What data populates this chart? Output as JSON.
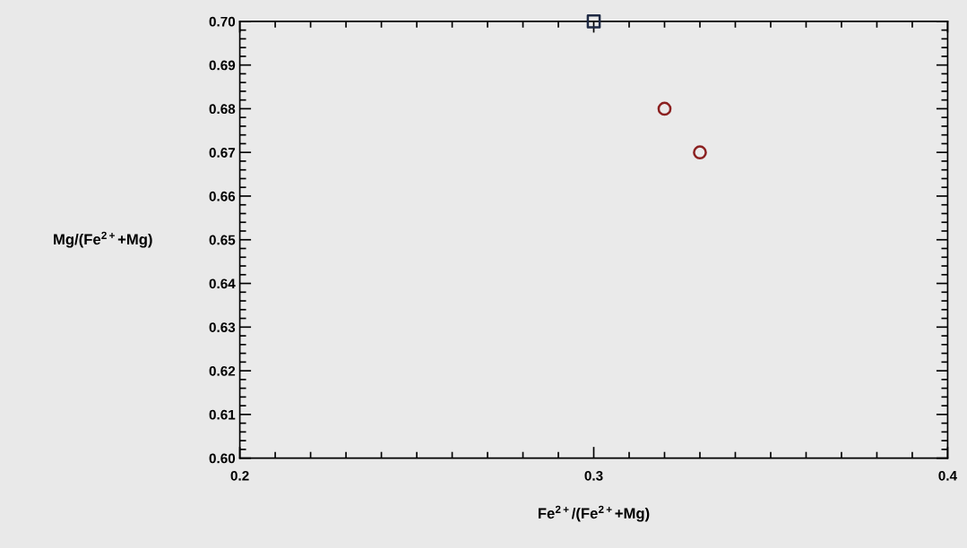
{
  "chart_data": {
    "type": "scatter",
    "xlabel": "Fe$^{2+}$/(Fe$^{2+}$+Mg)",
    "ylabel": "Mg/(Fe$^{2+}$+Mg)",
    "series": [
      {
        "x": [
          0.3
        ],
        "values": [
          0.7
        ],
        "color": "#1f2a44",
        "marker": "square"
      },
      {
        "x": [
          0.32,
          0.33
        ],
        "values": [
          0.68,
          0.67
        ],
        "color": "#8b2020",
        "marker": "circle"
      }
    ],
    "xlim": [
      0.2,
      0.4
    ],
    "xticks": [
      0.2,
      0.3,
      0.4
    ],
    "ylim": [
      0.6,
      0.7
    ],
    "yticks": [
      {
        "value": 0.6,
        "label": "0.60"
      },
      {
        "value": 0.61,
        "label": "0.61"
      },
      {
        "value": 0.62,
        "label": "0.62"
      },
      {
        "value": 0.63,
        "label": "0.63"
      },
      {
        "value": 0.64,
        "label": "0.64"
      },
      {
        "value": 0.65,
        "label": "0.65"
      },
      {
        "value": 0.66,
        "label": "0.66"
      },
      {
        "value": 0.67,
        "label": "0.67"
      },
      {
        "value": 0.68,
        "label": "0.68"
      },
      {
        "value": 0.69,
        "label": "0.69"
      },
      {
        "value": 0.7,
        "label": "0.70"
      }
    ],
    "grid": false
  }
}
